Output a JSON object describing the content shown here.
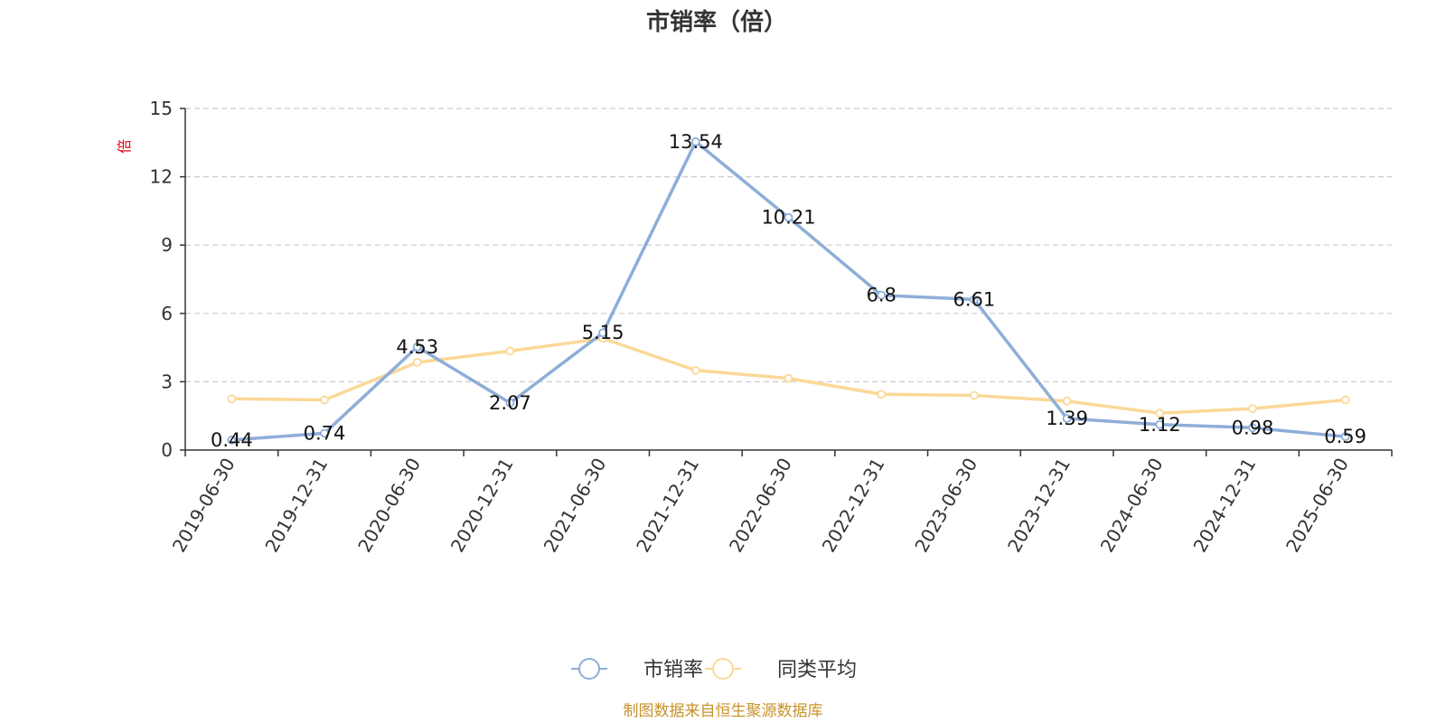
{
  "chart_data": {
    "type": "line",
    "title": "市销率（倍）",
    "unit_label": "倍",
    "categories": [
      "2019-06-30",
      "2019-12-31",
      "2020-06-30",
      "2020-12-31",
      "2021-06-30",
      "2021-12-31",
      "2022-06-30",
      "2022-12-31",
      "2023-06-30",
      "2023-12-31",
      "2024-06-30",
      "2024-12-31",
      "2025-06-30"
    ],
    "series": [
      {
        "name": "市销率",
        "color": "#8eaed8",
        "values": [
          0.44,
          0.74,
          4.53,
          2.07,
          5.15,
          13.54,
          10.21,
          6.8,
          6.61,
          1.39,
          1.12,
          0.98,
          0.59
        ],
        "labels": [
          "0.44",
          "0.74",
          "4.53",
          "2.07",
          "5.15",
          "13.54",
          "10.21",
          "6.8",
          "6.61",
          "1.39",
          "1.12",
          "0.98",
          "0.59"
        ],
        "show_labels": true
      },
      {
        "name": "同类平均",
        "color": "#fbd898",
        "values": [
          2.25,
          2.2,
          3.85,
          4.35,
          4.9,
          3.5,
          3.15,
          2.45,
          2.4,
          2.15,
          1.62,
          1.82,
          2.2
        ],
        "show_labels": false
      }
    ],
    "ylim": [
      0,
      15
    ],
    "yticks": [
      0,
      3,
      6,
      9,
      12,
      15
    ],
    "ytick_labels": [
      "0",
      "3",
      "6",
      "9",
      "12",
      "15"
    ],
    "grid": "horizontal dashed",
    "legend": "bottom-center",
    "source": "制图数据来自恒生聚源数据库"
  }
}
